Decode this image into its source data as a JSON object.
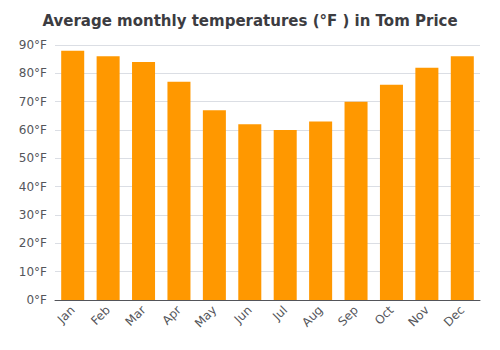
{
  "chart_data": {
    "type": "bar",
    "title": "Average monthly temperatures (°F ) in Tom Price",
    "categories": [
      "Jan",
      "Feb",
      "Mar",
      "Apr",
      "May",
      "Jun",
      "Jul",
      "Aug",
      "Sep",
      "Oct",
      "Nov",
      "Dec"
    ],
    "values": [
      88,
      86,
      84,
      77,
      67,
      62,
      60,
      63,
      70,
      76,
      82,
      86
    ],
    "color": "#FF9800",
    "ylim": [
      0,
      90
    ],
    "yticks": [
      {
        "value": 0,
        "label": "0°F"
      },
      {
        "value": 10,
        "label": "10°F"
      },
      {
        "value": 20,
        "label": "20°F"
      },
      {
        "value": 30,
        "label": "30°F"
      },
      {
        "value": 40,
        "label": "40°F"
      },
      {
        "value": 50,
        "label": "50°F"
      },
      {
        "value": 60,
        "label": "60°F"
      },
      {
        "value": 70,
        "label": "70°F"
      },
      {
        "value": 80,
        "label": "80°F"
      },
      {
        "value": 90,
        "label": "90°F"
      }
    ],
    "grid": true
  }
}
